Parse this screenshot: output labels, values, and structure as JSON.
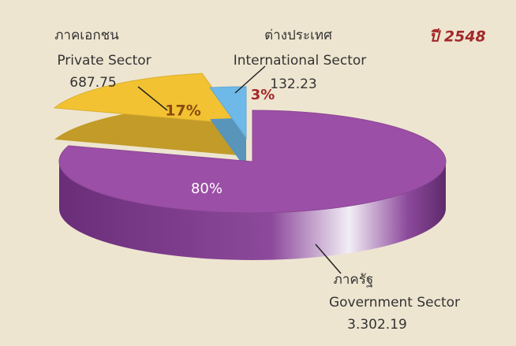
{
  "chart_data": {
    "type": "pie",
    "title": "ปี 2548",
    "categories": [
      "ภาคเอกชน",
      "ต่างประเทศ",
      "ภาครัฐ"
    ],
    "categories_en": [
      "Private Sector",
      "International Sector",
      "Government Sector"
    ],
    "amounts": [
      687.75,
      132.23,
      3302.19
    ],
    "amount_labels": [
      "687.75",
      "132.23",
      "3.302.19"
    ],
    "values": [
      17,
      3,
      80
    ],
    "value_labels": [
      "17%",
      "3%",
      "80%"
    ],
    "colors": [
      "#f2c232",
      "#6fb9e8",
      "#9b4fa6"
    ]
  }
}
